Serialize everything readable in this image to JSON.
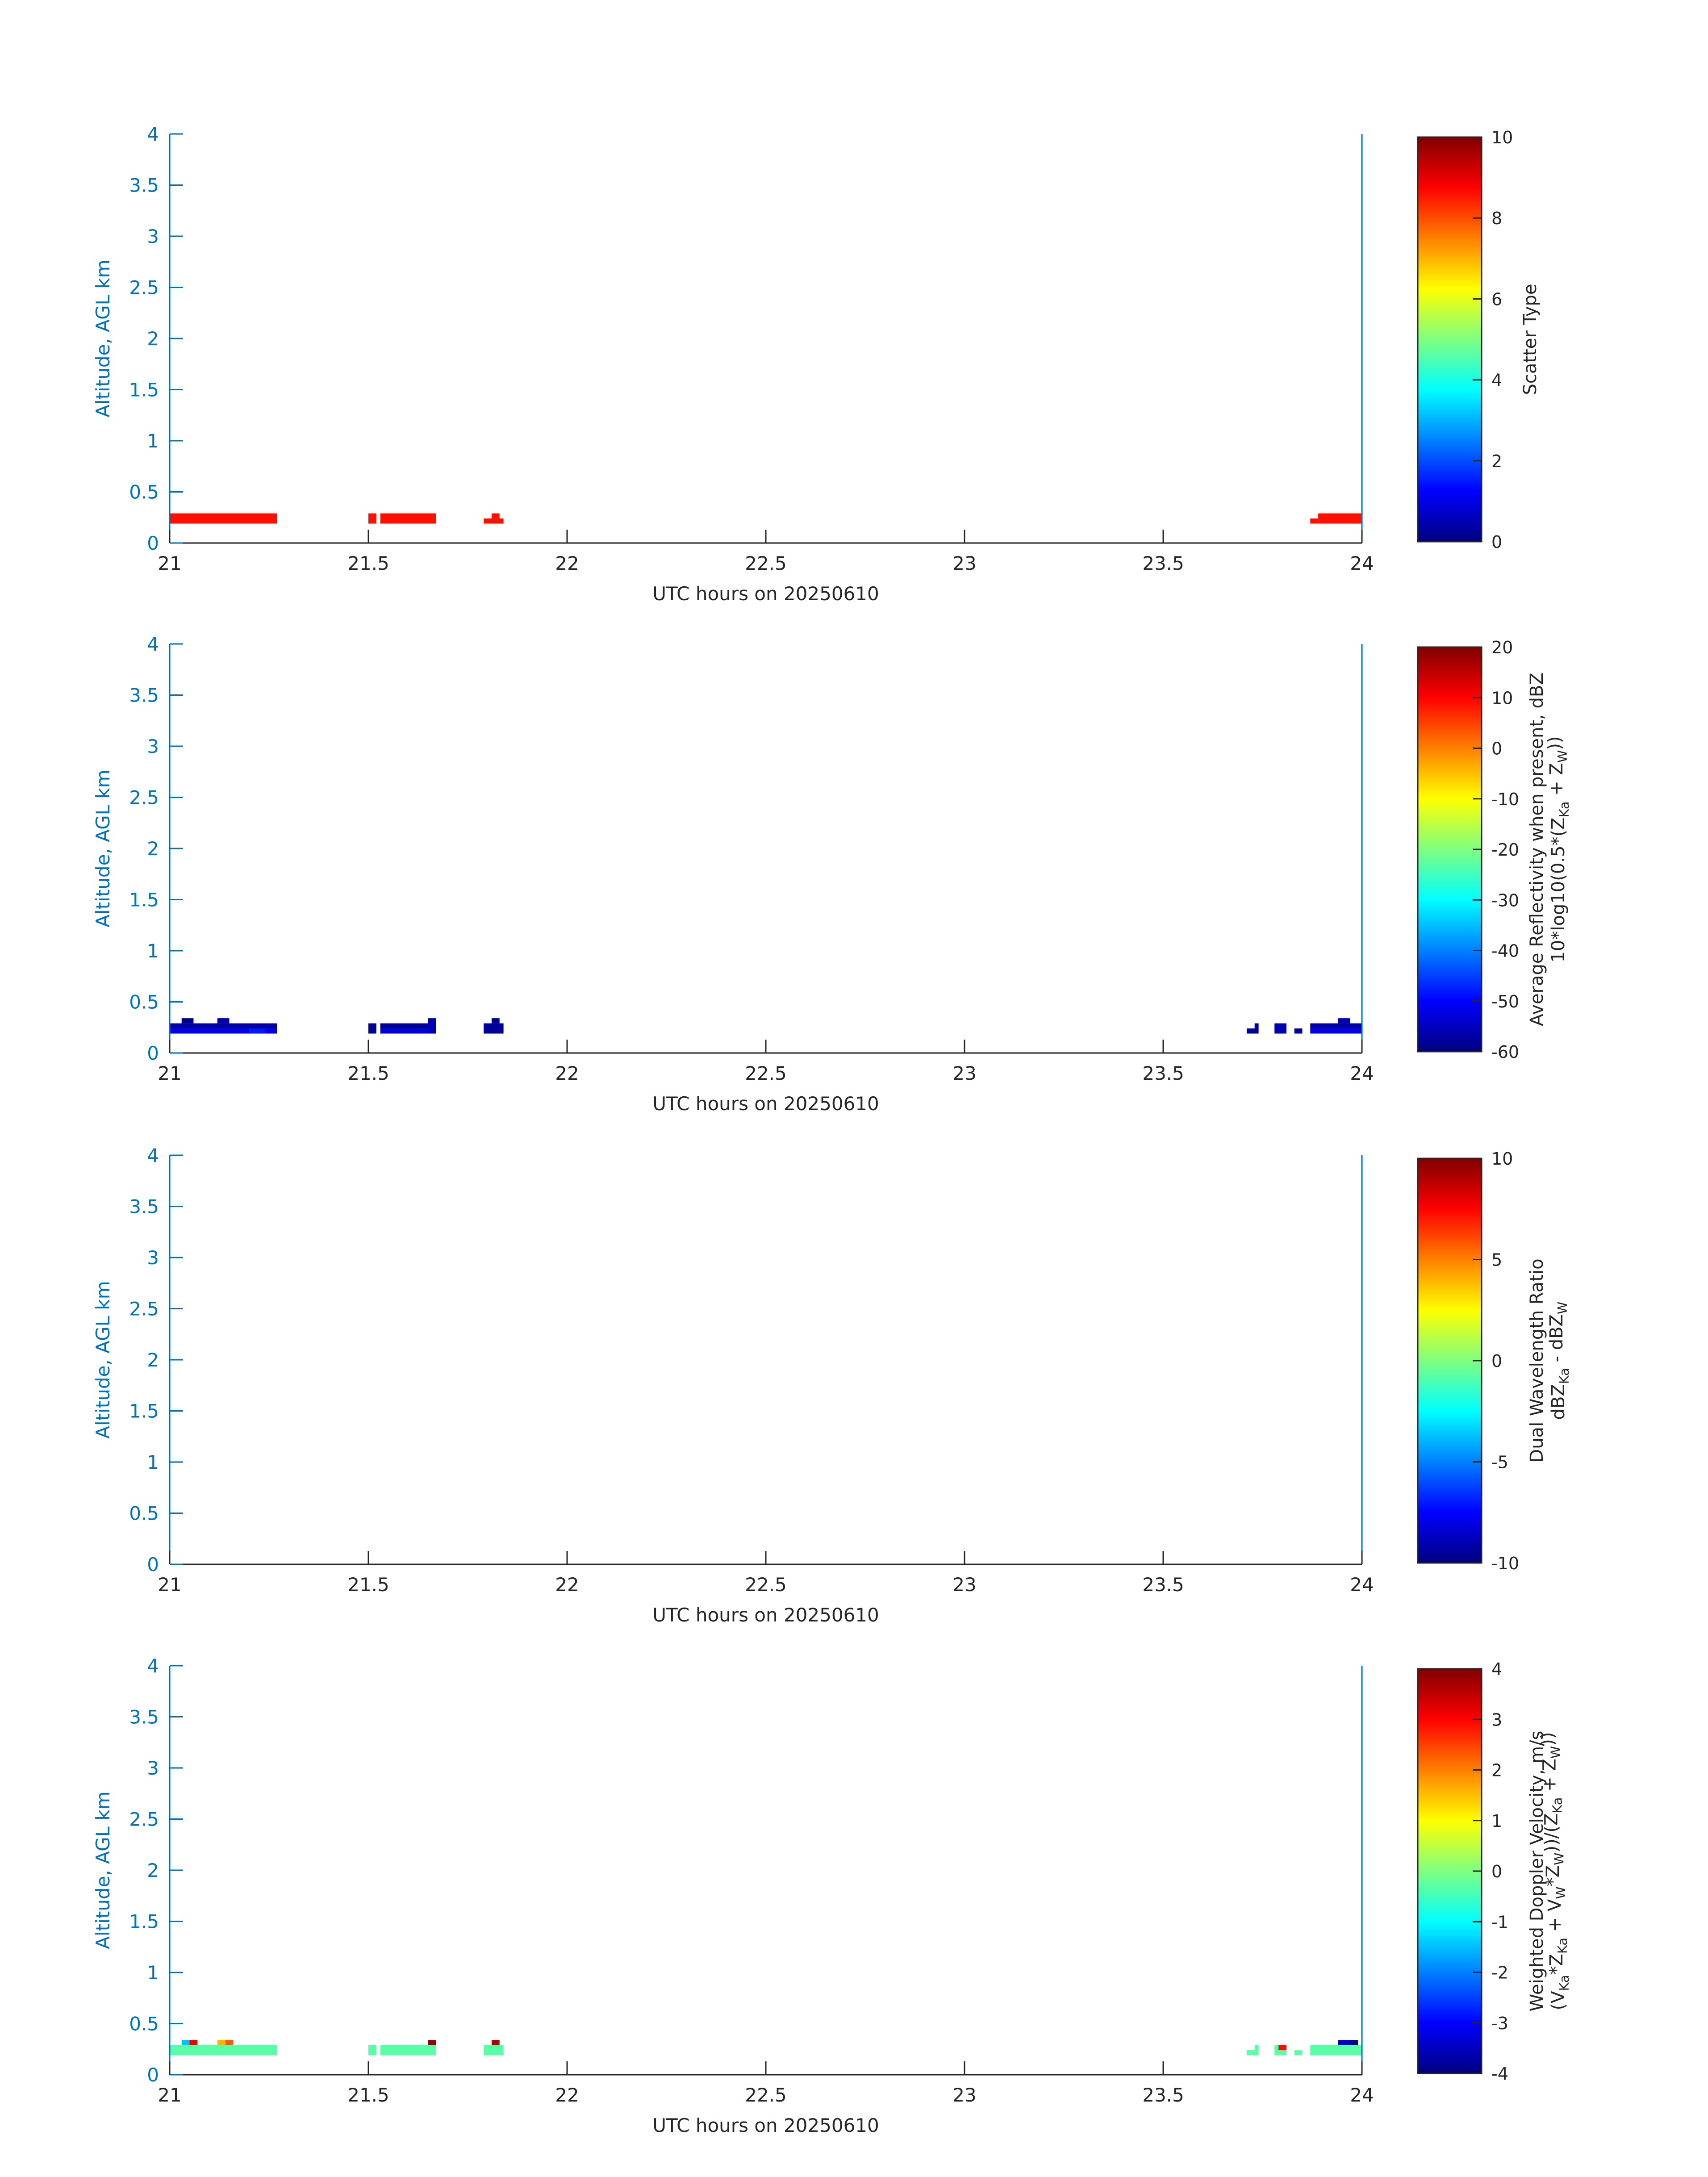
{
  "colors": {
    "axis_blue": "#0072bd",
    "text_dark": "#262626",
    "colorbar_map": "jet"
  },
  "chart_data": [
    {
      "type": "heatmap",
      "title": "",
      "xlabel": "UTC hours on 20250610",
      "ylabel": "Altitude, AGL km",
      "xlim": [
        21,
        24
      ],
      "ylim": [
        0,
        4
      ],
      "x_ticks": [
        "21",
        "21.5",
        "22",
        "22.5",
        "23",
        "23.5",
        "24"
      ],
      "y_ticks": [
        "0",
        "0.5",
        "1",
        "1.5",
        "2",
        "2.5",
        "3",
        "3.5",
        "4"
      ],
      "colorbar": {
        "label_lines": [
          "Scatter Type"
        ],
        "range": [
          0,
          10
        ],
        "ticks": [
          "0",
          "2",
          "4",
          "6",
          "8",
          "10"
        ]
      },
      "cells": [
        {
          "x0": 21.0,
          "x1": 21.27,
          "y0": 0.19,
          "y1": 0.29,
          "value": 8.6
        },
        {
          "x0": 21.5,
          "x1": 21.52,
          "y0": 0.19,
          "y1": 0.29,
          "value": 8.6
        },
        {
          "x0": 21.53,
          "x1": 21.67,
          "y0": 0.19,
          "y1": 0.29,
          "value": 8.6
        },
        {
          "x0": 21.79,
          "x1": 21.84,
          "y0": 0.19,
          "y1": 0.24,
          "value": 8.6
        },
        {
          "x0": 21.81,
          "x1": 21.83,
          "y0": 0.24,
          "y1": 0.29,
          "value": 8.6
        },
        {
          "x0": 23.87,
          "x1": 23.89,
          "y0": 0.19,
          "y1": 0.24,
          "value": 8.6
        },
        {
          "x0": 23.89,
          "x1": 24.0,
          "y0": 0.19,
          "y1": 0.29,
          "value": 8.6
        }
      ]
    },
    {
      "type": "heatmap",
      "title": "",
      "xlabel": "UTC hours on 20250610",
      "ylabel": "Altitude, AGL km",
      "xlim": [
        21,
        24
      ],
      "ylim": [
        0,
        4
      ],
      "x_ticks": [
        "21",
        "21.5",
        "22",
        "22.5",
        "23",
        "23.5",
        "24"
      ],
      "y_ticks": [
        "0",
        "0.5",
        "1",
        "1.5",
        "2",
        "2.5",
        "3",
        "3.5",
        "4"
      ],
      "colorbar": {
        "label_lines": [
          "Average Reflectivity when present, dBZ",
          "10*log10(0.5*(Z<sub>Ka</sub> + Z<sub>W</sub>))"
        ],
        "range": [
          -60,
          20
        ],
        "ticks": [
          "-60",
          "-50",
          "-40",
          "-30",
          "-20",
          "-10",
          "0",
          "10",
          "20"
        ]
      },
      "cells": [
        {
          "x0": 21.0,
          "x1": 21.27,
          "y0": 0.24,
          "y1": 0.29,
          "value": -57
        },
        {
          "x0": 21.0,
          "x1": 21.27,
          "y0": 0.19,
          "y1": 0.24,
          "value": -52
        },
        {
          "x0": 21.03,
          "x1": 21.06,
          "y0": 0.29,
          "y1": 0.34,
          "value": -59
        },
        {
          "x0": 21.12,
          "x1": 21.15,
          "y0": 0.29,
          "y1": 0.34,
          "value": -57
        },
        {
          "x0": 21.2,
          "x1": 21.24,
          "y0": 0.19,
          "y1": 0.24,
          "value": -48
        },
        {
          "x0": 21.5,
          "x1": 21.52,
          "y0": 0.19,
          "y1": 0.29,
          "value": -58
        },
        {
          "x0": 21.53,
          "x1": 21.66,
          "y0": 0.24,
          "y1": 0.29,
          "value": -58
        },
        {
          "x0": 21.53,
          "x1": 21.66,
          "y0": 0.19,
          "y1": 0.24,
          "value": -53
        },
        {
          "x0": 21.65,
          "x1": 21.67,
          "y0": 0.19,
          "y1": 0.34,
          "value": -56
        },
        {
          "x0": 21.79,
          "x1": 21.84,
          "y0": 0.19,
          "y1": 0.29,
          "value": -58
        },
        {
          "x0": 21.81,
          "x1": 21.83,
          "y0": 0.29,
          "y1": 0.34,
          "value": -59
        },
        {
          "x0": 23.71,
          "x1": 23.74,
          "y0": 0.19,
          "y1": 0.24,
          "value": -58
        },
        {
          "x0": 23.73,
          "x1": 23.74,
          "y0": 0.24,
          "y1": 0.29,
          "value": -58
        },
        {
          "x0": 23.78,
          "x1": 23.81,
          "y0": 0.19,
          "y1": 0.29,
          "value": -56
        },
        {
          "x0": 23.83,
          "x1": 23.85,
          "y0": 0.19,
          "y1": 0.24,
          "value": -58
        },
        {
          "x0": 23.87,
          "x1": 24.0,
          "y0": 0.24,
          "y1": 0.29,
          "value": -57
        },
        {
          "x0": 23.87,
          "x1": 24.0,
          "y0": 0.19,
          "y1": 0.24,
          "value": -52
        },
        {
          "x0": 23.94,
          "x1": 23.97,
          "y0": 0.29,
          "y1": 0.34,
          "value": -56
        }
      ]
    },
    {
      "type": "heatmap",
      "title": "",
      "xlabel": "UTC hours on 20250610",
      "ylabel": "Altitude, AGL km",
      "xlim": [
        21,
        24
      ],
      "ylim": [
        0,
        4
      ],
      "x_ticks": [
        "21",
        "21.5",
        "22",
        "22.5",
        "23",
        "23.5",
        "24"
      ],
      "y_ticks": [
        "0",
        "0.5",
        "1",
        "1.5",
        "2",
        "2.5",
        "3",
        "3.5",
        "4"
      ],
      "colorbar": {
        "label_lines": [
          "Dual Wavelength Ratio",
          "dBZ<sub>Ka</sub> - dBZ<sub>W</sub>"
        ],
        "range": [
          -10,
          10
        ],
        "ticks": [
          "-10",
          "-5",
          "0",
          "5",
          "10"
        ]
      },
      "cells": []
    },
    {
      "type": "heatmap",
      "title": "",
      "xlabel": "UTC hours on 20250610",
      "ylabel": "Altitude, AGL km",
      "xlim": [
        21,
        24
      ],
      "ylim": [
        0,
        4
      ],
      "x_ticks": [
        "21",
        "21.5",
        "22",
        "22.5",
        "23",
        "23.5",
        "24"
      ],
      "y_ticks": [
        "0",
        "0.5",
        "1",
        "1.5",
        "2",
        "2.5",
        "3",
        "3.5",
        "4"
      ],
      "colorbar": {
        "label_lines": [
          "Weighted Doppler Velocity, m/s",
          "(V<sub>Ka</sub>*Z<sub>Ka</sub> + V<sub>W</sub>*Z<sub>W</sub>))/(Z<sub>Ka</sub> + Z<sub>W</sub>))"
        ],
        "range": [
          -4,
          4
        ],
        "ticks": [
          "-4",
          "-3",
          "-2",
          "-1",
          "0",
          "1",
          "2",
          "3",
          "4"
        ]
      },
      "cells": [
        {
          "x0": 21.0,
          "x1": 21.27,
          "y0": 0.19,
          "y1": 0.29,
          "value": -0.3
        },
        {
          "x0": 21.03,
          "x1": 21.05,
          "y0": 0.29,
          "y1": 0.34,
          "value": -1.5
        },
        {
          "x0": 21.05,
          "x1": 21.07,
          "y0": 0.29,
          "y1": 0.34,
          "value": 3.1
        },
        {
          "x0": 21.12,
          "x1": 21.14,
          "y0": 0.29,
          "y1": 0.34,
          "value": 1.6
        },
        {
          "x0": 21.14,
          "x1": 21.16,
          "y0": 0.29,
          "y1": 0.34,
          "value": 2.3
        },
        {
          "x0": 21.5,
          "x1": 21.52,
          "y0": 0.19,
          "y1": 0.29,
          "value": -0.3
        },
        {
          "x0": 21.53,
          "x1": 21.67,
          "y0": 0.19,
          "y1": 0.29,
          "value": -0.3
        },
        {
          "x0": 21.65,
          "x1": 21.67,
          "y0": 0.29,
          "y1": 0.34,
          "value": 3.8
        },
        {
          "x0": 21.79,
          "x1": 21.84,
          "y0": 0.19,
          "y1": 0.29,
          "value": -0.3
        },
        {
          "x0": 21.81,
          "x1": 21.83,
          "y0": 0.29,
          "y1": 0.34,
          "value": 3.6
        },
        {
          "x0": 23.71,
          "x1": 23.74,
          "y0": 0.19,
          "y1": 0.24,
          "value": -0.3
        },
        {
          "x0": 23.73,
          "x1": 23.74,
          "y0": 0.24,
          "y1": 0.29,
          "value": -0.3
        },
        {
          "x0": 23.78,
          "x1": 23.81,
          "y0": 0.19,
          "y1": 0.29,
          "value": -0.3
        },
        {
          "x0": 23.79,
          "x1": 23.81,
          "y0": 0.24,
          "y1": 0.29,
          "value": 2.9
        },
        {
          "x0": 23.83,
          "x1": 23.85,
          "y0": 0.19,
          "y1": 0.24,
          "value": -0.3
        },
        {
          "x0": 23.87,
          "x1": 24.0,
          "y0": 0.19,
          "y1": 0.29,
          "value": -0.3
        },
        {
          "x0": 23.94,
          "x1": 23.97,
          "y0": 0.29,
          "y1": 0.34,
          "value": -3.4
        },
        {
          "x0": 23.97,
          "x1": 23.99,
          "y0": 0.29,
          "y1": 0.34,
          "value": -3.8
        }
      ]
    }
  ]
}
